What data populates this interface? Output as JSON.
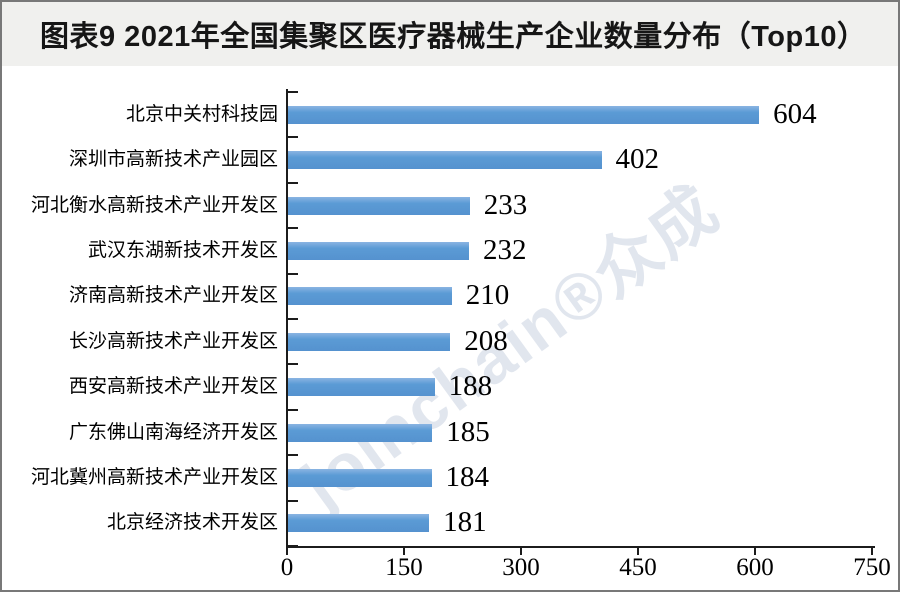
{
  "page": {
    "title": "图表9 2021年全国集聚区医疗器械生产企业数量分布（Top10）"
  },
  "watermark": "joinchain®众成",
  "colors": {
    "bar": "#5B9BD5",
    "title_band_bg": "#f0f0ee",
    "axis": "#1c1c1c",
    "watermark": "rgba(183,196,214,0.42)"
  },
  "chart_data": {
    "type": "bar",
    "orientation": "horizontal",
    "title": "图表9 2021年全国集聚区医疗器械生产企业数量分布（Top10）",
    "categories": [
      "北京中关村科技园",
      "深圳市高新技术产业园区",
      "河北衡水高新技术产业开发区",
      "武汉东湖新技术开发区",
      "济南高新技术产业开发区",
      "长沙高新技术产业开发区",
      "西安高新技术产业开发区",
      "广东佛山南海经济开发区",
      "河北冀州高新技术产业开发区",
      "北京经济技术开发区"
    ],
    "values": [
      604,
      402,
      233,
      232,
      210,
      208,
      188,
      185,
      184,
      181
    ],
    "value_labels_shown": true,
    "xlabel": "",
    "ylabel": "",
    "xlim": [
      0,
      750
    ],
    "x_ticks": [
      0,
      150,
      300,
      450,
      600,
      750
    ],
    "grid": false,
    "legend": false
  }
}
